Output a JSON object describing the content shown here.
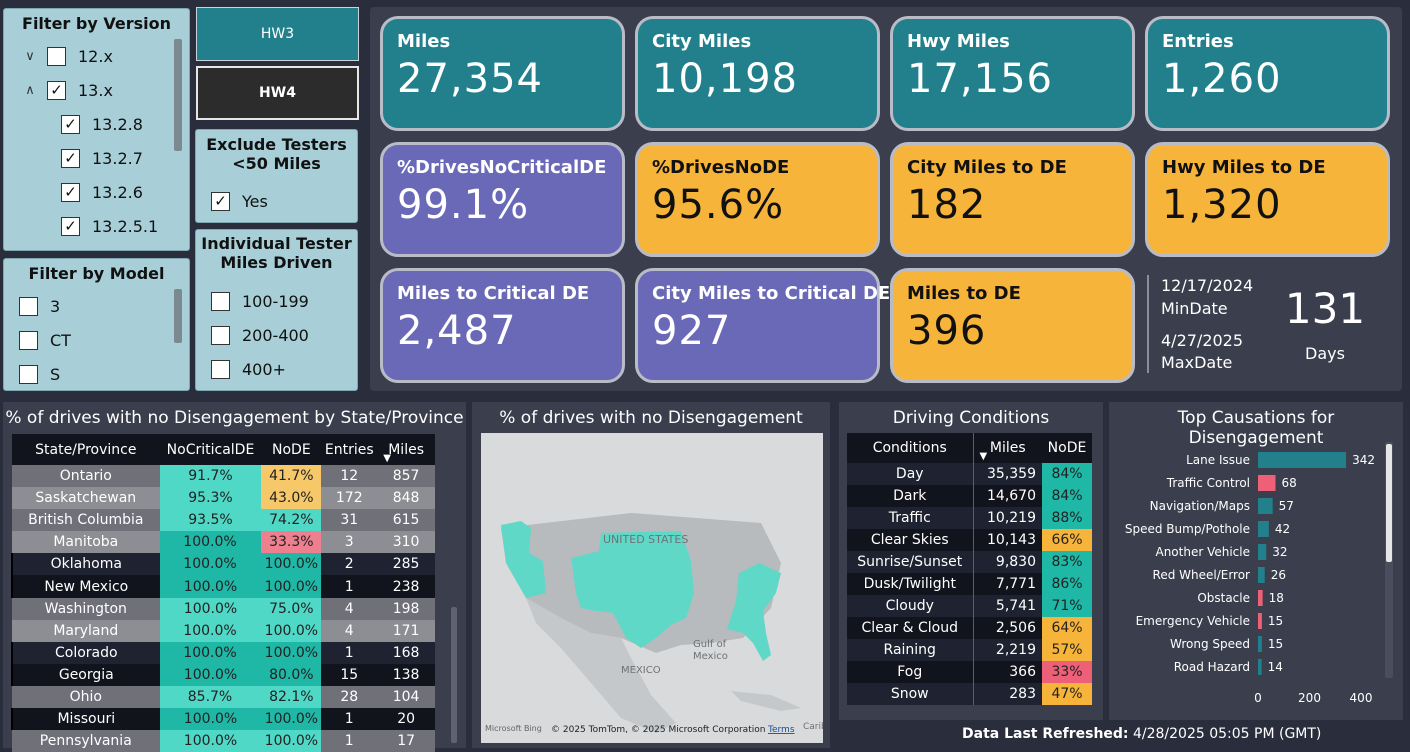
{
  "version_filter": {
    "title": "Filter by Version",
    "items": [
      {
        "label": "12.x",
        "chevron": "∨",
        "checked": false
      },
      {
        "label": "13.x",
        "chevron": "∧",
        "checked": true
      },
      {
        "label": "13.2.8",
        "checked": true
      },
      {
        "label": "13.2.7",
        "checked": true
      },
      {
        "label": "13.2.6",
        "checked": true
      },
      {
        "label": "13.2.5.1",
        "checked": true
      }
    ]
  },
  "model_filter": {
    "title": "Filter by Model",
    "items": [
      {
        "label": "3"
      },
      {
        "label": "CT"
      },
      {
        "label": "S"
      }
    ]
  },
  "hw_buttons": {
    "hw3": "HW3",
    "hw4": "HW4"
  },
  "exclude_testers": {
    "title_line1": "Exclude Testers",
    "title_line2": "<50 Miles",
    "option": "Yes"
  },
  "tester_miles": {
    "title_line1": "Individual Tester",
    "title_line2": "Miles Driven",
    "items": [
      {
        "label": "100-199"
      },
      {
        "label": "200-400"
      },
      {
        "label": "400+"
      }
    ]
  },
  "cards": {
    "miles": {
      "label": "Miles",
      "value": "27,354"
    },
    "city_miles": {
      "label": "City Miles",
      "value": "10,198"
    },
    "hwy_miles": {
      "label": "Hwy Miles",
      "value": "17,156"
    },
    "entries": {
      "label": "Entries",
      "value": "1,260"
    },
    "drives_no_critical": {
      "label": "%DrivesNoCriticalDE",
      "value": "99.1%"
    },
    "drives_no_de": {
      "label": "%DrivesNoDE",
      "value": "95.6%"
    },
    "city_miles_to_de": {
      "label": "City Miles to DE",
      "value": "182"
    },
    "hwy_miles_to_de": {
      "label": "Hwy Miles to DE",
      "value": "1,320"
    },
    "miles_to_critical": {
      "label": "Miles to Critical DE",
      "value": "2,487"
    },
    "city_miles_to_critical": {
      "label": "City Miles to Critical DE",
      "value": "927"
    },
    "miles_to_de": {
      "label": "Miles to DE",
      "value": "396"
    }
  },
  "dates": {
    "min_value": "12/17/2024",
    "min_label": "MinDate",
    "max_value": "4/27/2025",
    "max_label": "MaxDate",
    "days_value": "131",
    "days_label": "Days"
  },
  "state_table": {
    "title": "% of drives with no Disengagement by State/Province",
    "headers": [
      "State/Province",
      "NoCriticalDE",
      "NoDE",
      "Entries",
      "Miles"
    ],
    "rows": [
      [
        "Ontario",
        "91.7%",
        "41.7%",
        "12",
        "857"
      ],
      [
        "Saskatchewan",
        "95.3%",
        "43.0%",
        "172",
        "848"
      ],
      [
        "British Columbia",
        "93.5%",
        "74.2%",
        "31",
        "615"
      ],
      [
        "Manitoba",
        "100.0%",
        "33.3%",
        "3",
        "310"
      ],
      [
        "Oklahoma",
        "100.0%",
        "100.0%",
        "2",
        "285"
      ],
      [
        "New Mexico",
        "100.0%",
        "100.0%",
        "1",
        "238"
      ],
      [
        "Washington",
        "100.0%",
        "75.0%",
        "4",
        "198"
      ],
      [
        "Maryland",
        "100.0%",
        "100.0%",
        "4",
        "171"
      ],
      [
        "Colorado",
        "100.0%",
        "100.0%",
        "1",
        "168"
      ],
      [
        "Georgia",
        "100.0%",
        "80.0%",
        "15",
        "138"
      ],
      [
        "Ohio",
        "85.7%",
        "82.1%",
        "28",
        "104"
      ],
      [
        "Missouri",
        "100.0%",
        "100.0%",
        "1",
        "20"
      ],
      [
        "Pennsylvania",
        "100.0%",
        "100.0%",
        "1",
        "17"
      ]
    ],
    "row_shades": [
      "#6f7078",
      "#8d8e94",
      "#6f7078",
      "#8d8e94",
      "#1f2230",
      "#12141d",
      "#6f7078",
      "#8d8e94",
      "#1f2230",
      "#12141d",
      "#6f7078",
      "#12141d",
      "#6f7078"
    ],
    "nodecrit_colors": [
      "#4fd8c6",
      "#4fd8c6",
      "#4fd8c6",
      "#1fb8a6",
      "#1fb8a6",
      "#1fb8a6",
      "#4fd8c6",
      "#4fd8c6",
      "#1fb8a6",
      "#1fb8a6",
      "#4fd8c6",
      "#1fb8a6",
      "#4fd8c6"
    ],
    "node_colors": [
      "#f6c86a",
      "#f6c86a",
      "#4fd8c6",
      "#ee7f8e",
      "#1fb8a6",
      "#1fb8a6",
      "#4fd8c6",
      "#4fd8c6",
      "#1fb8a6",
      "#1fb8a6",
      "#4fd8c6",
      "#1fb8a6",
      "#4fd8c6"
    ]
  },
  "map": {
    "title": "% of drives with no Disengagement",
    "labels": {
      "us": "UNITED STATES",
      "gulf": "Gulf of",
      "mexico_gulf": "Mexico",
      "mexico": "MEXICO",
      "carib": "Carib"
    },
    "attribution": "© 2025 TomTom, © 2025 Microsoft Corporation",
    "terms": "Terms",
    "logo": "Microsoft Bing"
  },
  "conditions": {
    "title": "Driving Conditions",
    "headers": [
      "Conditions",
      "Miles",
      "NoDE"
    ],
    "rows": [
      [
        "Day",
        "35,359",
        "84%"
      ],
      [
        "Dark",
        "14,670",
        "84%"
      ],
      [
        "Traffic",
        "10,219",
        "88%"
      ],
      [
        "Clear Skies",
        "10,143",
        "66%"
      ],
      [
        "Sunrise/Sunset",
        "9,830",
        "83%"
      ],
      [
        "Dusk/Twilight",
        "7,771",
        "86%"
      ],
      [
        "Cloudy",
        "5,741",
        "71%"
      ],
      [
        "Clear & Cloud",
        "2,506",
        "64%"
      ],
      [
        "Raining",
        "2,219",
        "57%"
      ],
      [
        "Fog",
        "366",
        "33%"
      ],
      [
        "Snow",
        "283",
        "47%"
      ]
    ],
    "node_colors": [
      "#1fb8a6",
      "#1fb8a6",
      "#1fb8a6",
      "#f6b43a",
      "#1fb8a6",
      "#1fb8a6",
      "#1fb8a6",
      "#f6b43a",
      "#f6b43a",
      "#ee5f78",
      "#f6b43a"
    ]
  },
  "chart_data": {
    "type": "bar",
    "title": "Top Causations for Disengagement",
    "categories": [
      "Lane Issue",
      "Traffic Control",
      "Navigation/Maps",
      "Speed Bump/Pothole",
      "Another Vehicle",
      "Red Wheel/Error",
      "Obstacle",
      "Emergency Vehicle",
      "Wrong Speed",
      "Road Hazard"
    ],
    "values": [
      342,
      68,
      57,
      42,
      32,
      26,
      18,
      15,
      15,
      14
    ],
    "bar_colors": [
      "#22808c",
      "#ee5f78",
      "#22808c",
      "#22808c",
      "#22808c",
      "#22808c",
      "#ee5f78",
      "#ee5f78",
      "#22808c",
      "#22808c"
    ],
    "xticks": [
      0,
      200,
      400
    ],
    "xlim": [
      0,
      400
    ],
    "orientation": "horizontal"
  },
  "footer": {
    "label": "Data Last Refreshed:",
    "value": "4/28/2025 05:05 PM (GMT)"
  }
}
